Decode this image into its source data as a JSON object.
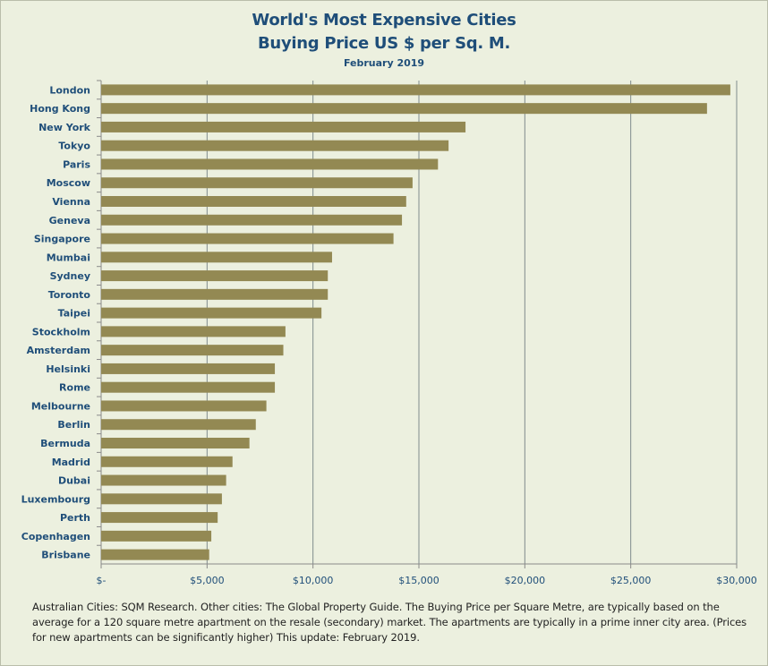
{
  "chart_data": {
    "type": "bar",
    "orientation": "horizontal",
    "title": "World's Most Expensive Cities",
    "title_line2": "Buying Price US $ per Sq. M.",
    "subtitle": "February 2019",
    "xlim": [
      0,
      30000
    ],
    "grid": true,
    "xtick_labels": [
      "$-",
      "$5,000",
      "$10,000",
      "$15,000",
      "$20,000",
      "$25,000",
      "$30,000"
    ],
    "xticks": [
      0,
      5000,
      10000,
      15000,
      20000,
      25000,
      30000
    ],
    "categories": [
      "London",
      "Hong Kong",
      "New York",
      "Tokyo",
      "Paris",
      "Moscow",
      "Vienna",
      "Geneva",
      "Singapore",
      "Mumbai",
      "Sydney",
      "Toronto",
      "Taipei",
      "Stockholm",
      "Amsterdam",
      "Helsinki",
      "Rome",
      "Melbourne",
      "Berlin",
      "Bermuda",
      "Madrid",
      "Dubai",
      "Luxembourg",
      "Perth",
      "Copenhagen",
      "Brisbane"
    ],
    "values": [
      29700,
      28600,
      17200,
      16400,
      15900,
      14700,
      14400,
      14200,
      13800,
      10900,
      10700,
      10700,
      10400,
      8700,
      8600,
      8200,
      8200,
      7800,
      7300,
      7000,
      6200,
      5900,
      5700,
      5500,
      5200,
      5100
    ],
    "bar_color": "#938953"
  },
  "footnote": "Australian Cities: SQM Research.  Other cities: The Global Property Guide.  The Buying Price per Square Metre,  are typically based on the average for a 120 square metre apartment on the resale (secondary) market.  The apartments are typically in a prime inner city area.  (Prices for new apartments can be significantly higher)  This update:  February 2019."
}
